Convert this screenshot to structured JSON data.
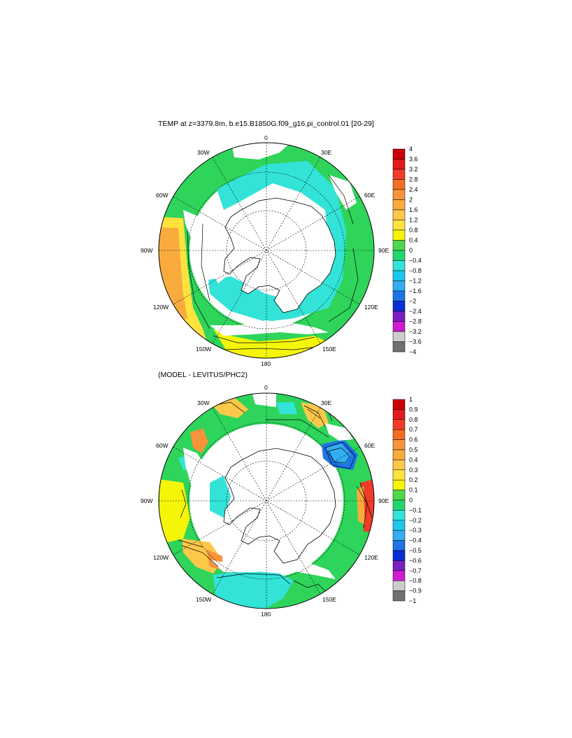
{
  "panels": [
    {
      "title": "TEMP at z=3379.8m, b.e15.B1850G.f09_g16.pi_control.01 [20-29]",
      "lon_labels": [
        "0",
        "30E",
        "60E",
        "90E",
        "120E",
        "150E",
        "180",
        "150W",
        "120W",
        "90W",
        "60W",
        "30W"
      ],
      "colorbar": {
        "labels": [
          "4",
          "3.6",
          "3.2",
          "2.8",
          "2.4",
          "2",
          "1.6",
          "1.2",
          "0.8",
          "0.4",
          "0",
          "−0.4",
          "−0.8",
          "−1.2",
          "−1.6",
          "−2",
          "−2.4",
          "−2.8",
          "−3.2",
          "−3.6",
          "−4"
        ],
        "colors": [
          "#c8000a",
          "#e31a1c",
          "#f03c28",
          "#f46d24",
          "#f7943a",
          "#f9ab3e",
          "#fdc84a",
          "#ffe33c",
          "#f5f50a",
          "#4fd84a",
          "#22d66e",
          "#33e3d8",
          "#1fc6ee",
          "#33aef0",
          "#1d74e8",
          "#0a2fd6",
          "#7a1fc0",
          "#d01ad0",
          "#cccccc",
          "#707070"
        ]
      }
    },
    {
      "title": "(MODEL - LEVITUS/PHC2)",
      "lon_labels": [
        "0",
        "30E",
        "60E",
        "90E",
        "120E",
        "150E",
        "180",
        "150W",
        "120W",
        "90W",
        "60W",
        "30W"
      ],
      "colorbar": {
        "labels": [
          "1",
          "0.9",
          "0.8",
          "0.7",
          "0.6",
          "0.5",
          "0.4",
          "0.3",
          "0.2",
          "0.1",
          "0",
          "−0.1",
          "−0.2",
          "−0.3",
          "−0.4",
          "−0.5",
          "−0.6",
          "−0.7",
          "−0.8",
          "−0.9",
          "−1"
        ],
        "colors": [
          "#c8000a",
          "#e31a1c",
          "#f03c28",
          "#f46d24",
          "#f7943a",
          "#f9ab3e",
          "#fdc84a",
          "#ffe33c",
          "#f5f50a",
          "#4fd84a",
          "#22d66e",
          "#33e3d8",
          "#1fc6ee",
          "#33aef0",
          "#1d74e8",
          "#0a2fd6",
          "#7a1fc0",
          "#d01ad0",
          "#cccccc",
          "#707070"
        ]
      }
    }
  ]
}
